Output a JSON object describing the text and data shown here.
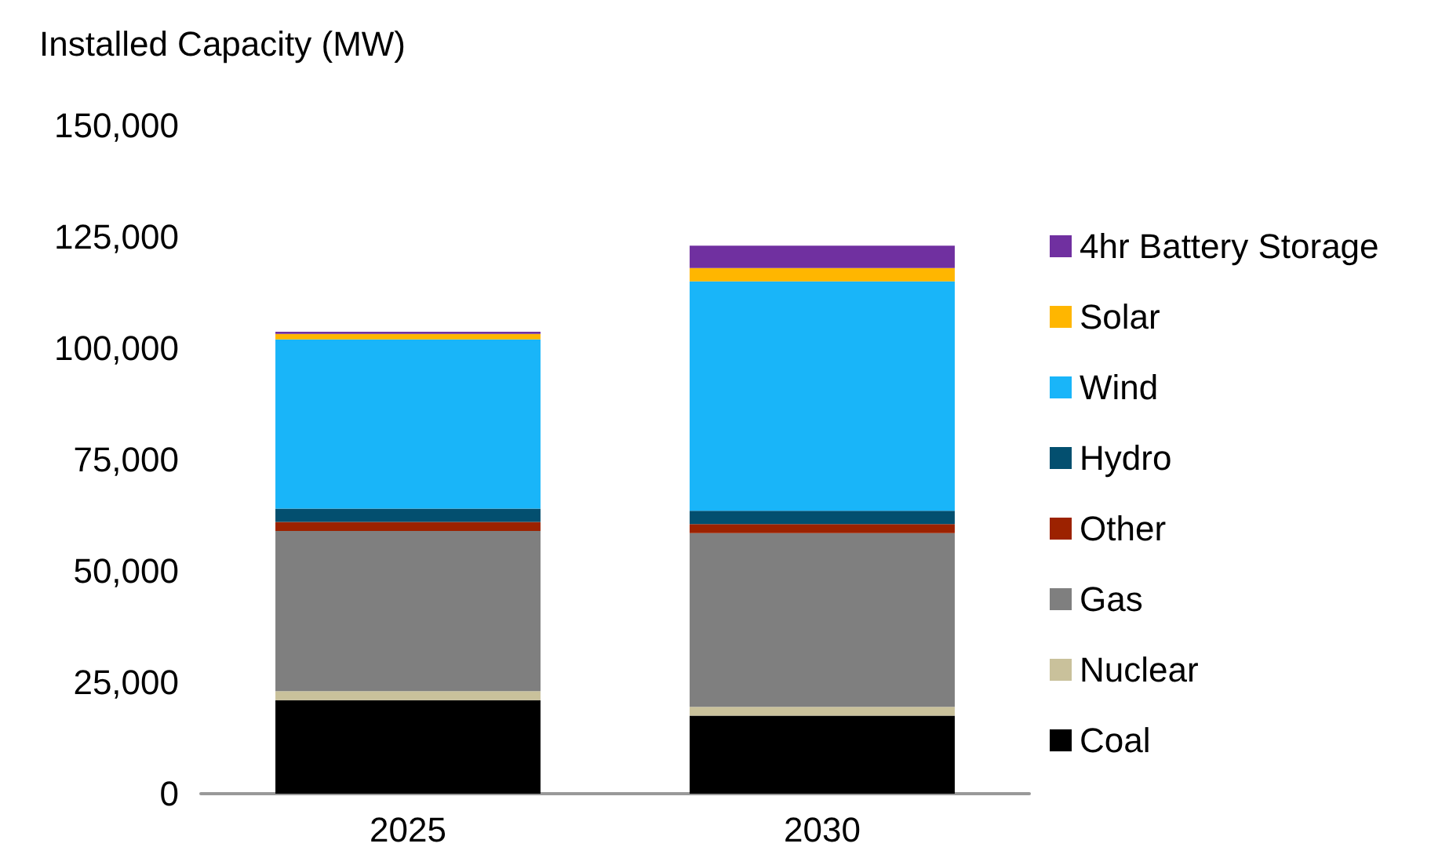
{
  "chart_data": {
    "type": "bar",
    "stacked": true,
    "ylabel": "Installed Capacity (MW)",
    "categories": [
      "2025",
      "2030"
    ],
    "series": [
      {
        "name": "Coal",
        "color": "#000000",
        "values": [
          21000,
          17500
        ]
      },
      {
        "name": "Nuclear",
        "color": "#c9c19b",
        "values": [
          2000,
          2000
        ]
      },
      {
        "name": "Gas",
        "color": "#7f7f7f",
        "values": [
          36000,
          39000
        ]
      },
      {
        "name": "Other",
        "color": "#9c2200",
        "values": [
          2000,
          2000
        ]
      },
      {
        "name": "Hydro",
        "color": "#034f6f",
        "values": [
          3000,
          3000
        ]
      },
      {
        "name": "Wind",
        "color": "#19b5f9",
        "values": [
          38000,
          51500
        ]
      },
      {
        "name": "Solar",
        "color": "#ffb600",
        "values": [
          1200,
          3000
        ]
      },
      {
        "name": "4hr Battery Storage",
        "color": "#7030a0",
        "values": [
          500,
          5000
        ]
      }
    ],
    "ylim": [
      0,
      150000
    ],
    "yticks": [
      0,
      {
        "value": 25000,
        "label": "25,000"
      },
      {
        "value": 50000,
        "label": "50,000"
      },
      {
        "value": 75000,
        "label": "75,000"
      },
      {
        "value": 100000,
        "label": "100,000"
      },
      {
        "value": 125000,
        "label": "125,000"
      },
      {
        "value": 150000,
        "label": "150,000"
      }
    ],
    "grid": false,
    "legend": "right"
  }
}
